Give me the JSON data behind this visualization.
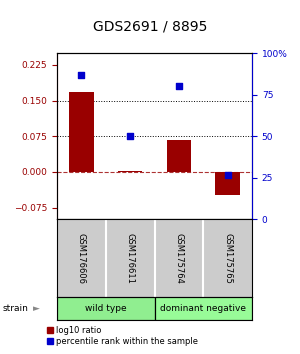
{
  "title": "GDS2691 / 8895",
  "categories": [
    "GSM176606",
    "GSM176611",
    "GSM175764",
    "GSM175765"
  ],
  "log10_ratio": [
    0.168,
    0.002,
    0.068,
    -0.048
  ],
  "percentile_rank": [
    87,
    50,
    80,
    27
  ],
  "groups": [
    {
      "label": "wild type",
      "indices": [
        0,
        1
      ],
      "color": "#90EE90"
    },
    {
      "label": "dominant negative",
      "indices": [
        2,
        3
      ],
      "color": "#98FB98"
    }
  ],
  "bar_color": "#990000",
  "dot_color": "#0000CC",
  "ylim_left": [
    -0.1,
    0.25
  ],
  "ylim_right": [
    0,
    100
  ],
  "yticks_left": [
    -0.075,
    0,
    0.075,
    0.15,
    0.225
  ],
  "yticks_right": [
    0,
    25,
    50,
    75,
    100
  ],
  "hlines": [
    0.075,
    0.15
  ],
  "hline_zero": 0,
  "legend_ratio_label": "log10 ratio",
  "legend_pct_label": "percentile rank within the sample",
  "bar_width": 0.5,
  "dot_size": 25,
  "background_color": "#ffffff",
  "plot_bg": "#ffffff",
  "title_fontsize": 10,
  "tick_fontsize": 6.5,
  "label_fontsize": 7
}
